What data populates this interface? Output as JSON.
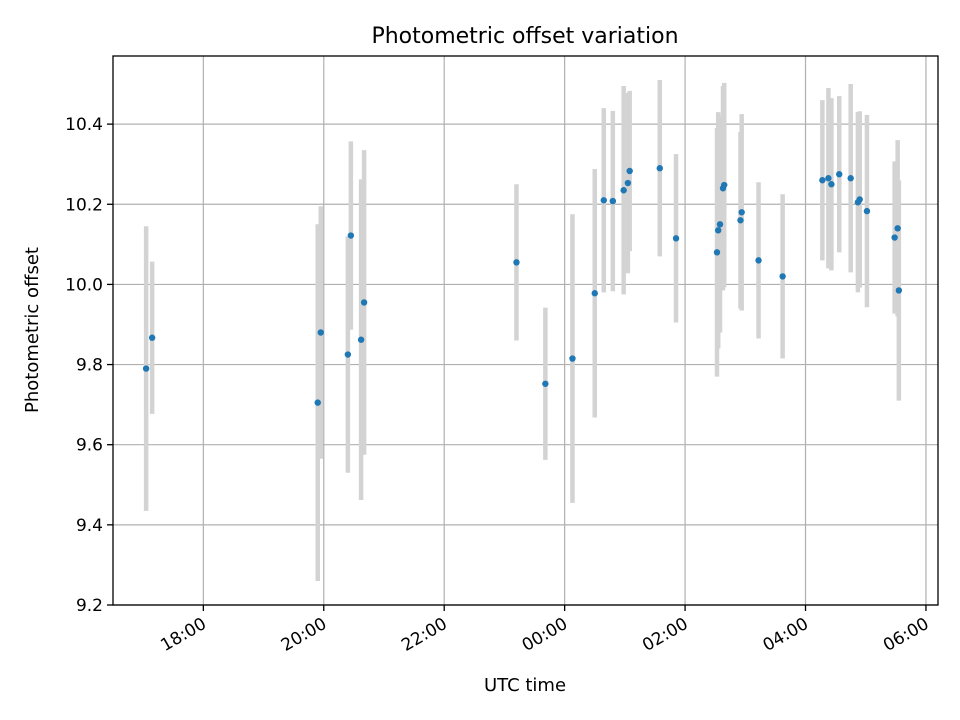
{
  "chart_data": {
    "type": "scatter",
    "title": "Photometric offset variation",
    "xlabel": "UTC time",
    "ylabel": "Photometric offset",
    "x_unit": "hours",
    "xlim": [
      16.5,
      30.2
    ],
    "ylim": [
      9.2,
      10.57
    ],
    "x_ticks": [
      {
        "value": 18,
        "label": "18:00"
      },
      {
        "value": 20,
        "label": "20:00"
      },
      {
        "value": 22,
        "label": "22:00"
      },
      {
        "value": 24,
        "label": "00:00"
      },
      {
        "value": 26,
        "label": "02:00"
      },
      {
        "value": 28,
        "label": "04:00"
      },
      {
        "value": 30,
        "label": "06:00"
      }
    ],
    "y_ticks": [
      {
        "value": 9.2,
        "label": "9.2"
      },
      {
        "value": 9.4,
        "label": "9.4"
      },
      {
        "value": 9.6,
        "label": "9.6"
      },
      {
        "value": 9.8,
        "label": "9.8"
      },
      {
        "value": 10.0,
        "label": "10.0"
      },
      {
        "value": 10.2,
        "label": "10.2"
      },
      {
        "value": 10.4,
        "label": "10.4"
      }
    ],
    "grid": true,
    "legend": "none",
    "marker_color": "#1f77b4",
    "errorbar_color": "#d3d3d3",
    "points": [
      {
        "x": 17.05,
        "y": 9.79,
        "yerr": 0.355
      },
      {
        "x": 17.15,
        "y": 9.867,
        "yerr": 0.19
      },
      {
        "x": 19.9,
        "y": 9.705,
        "yerr": 0.445
      },
      {
        "x": 19.95,
        "y": 9.88,
        "yerr": 0.315
      },
      {
        "x": 20.4,
        "y": 9.825,
        "yerr": 0.295
      },
      {
        "x": 20.45,
        "y": 10.122,
        "yerr": 0.235
      },
      {
        "x": 20.62,
        "y": 9.862,
        "yerr": 0.4
      },
      {
        "x": 20.67,
        "y": 9.955,
        "yerr": 0.38
      },
      {
        "x": 23.2,
        "y": 10.055,
        "yerr": 0.195
      },
      {
        "x": 23.68,
        "y": 9.752,
        "yerr": 0.19
      },
      {
        "x": 24.13,
        "y": 9.815,
        "yerr": 0.36
      },
      {
        "x": 24.5,
        "y": 9.978,
        "yerr": 0.31
      },
      {
        "x": 24.65,
        "y": 10.21,
        "yerr": 0.23
      },
      {
        "x": 24.8,
        "y": 10.208,
        "yerr": 0.225
      },
      {
        "x": 24.98,
        "y": 10.235,
        "yerr": 0.26
      },
      {
        "x": 25.05,
        "y": 10.253,
        "yerr": 0.225
      },
      {
        "x": 25.08,
        "y": 10.283,
        "yerr": 0.2
      },
      {
        "x": 25.58,
        "y": 10.29,
        "yerr": 0.22
      },
      {
        "x": 25.85,
        "y": 10.115,
        "yerr": 0.21
      },
      {
        "x": 26.53,
        "y": 10.08,
        "yerr": 0.31
      },
      {
        "x": 26.55,
        "y": 10.135,
        "yerr": 0.295
      },
      {
        "x": 26.58,
        "y": 10.15,
        "yerr": 0.27
      },
      {
        "x": 26.63,
        "y": 10.24,
        "yerr": 0.255
      },
      {
        "x": 26.65,
        "y": 10.248,
        "yerr": 0.255
      },
      {
        "x": 26.92,
        "y": 10.16,
        "yerr": 0.22
      },
      {
        "x": 26.94,
        "y": 10.18,
        "yerr": 0.245
      },
      {
        "x": 27.22,
        "y": 10.06,
        "yerr": 0.195
      },
      {
        "x": 27.62,
        "y": 10.02,
        "yerr": 0.205
      },
      {
        "x": 28.28,
        "y": 10.26,
        "yerr": 0.2
      },
      {
        "x": 28.38,
        "y": 10.265,
        "yerr": 0.225
      },
      {
        "x": 28.43,
        "y": 10.25,
        "yerr": 0.215
      },
      {
        "x": 28.56,
        "y": 10.275,
        "yerr": 0.195
      },
      {
        "x": 28.75,
        "y": 10.265,
        "yerr": 0.235
      },
      {
        "x": 28.87,
        "y": 10.205,
        "yerr": 0.225
      },
      {
        "x": 28.9,
        "y": 10.212,
        "yerr": 0.22
      },
      {
        "x": 29.02,
        "y": 10.183,
        "yerr": 0.24
      },
      {
        "x": 29.48,
        "y": 10.117,
        "yerr": 0.19
      },
      {
        "x": 29.53,
        "y": 10.14,
        "yerr": 0.22
      },
      {
        "x": 29.55,
        "y": 9.985,
        "yerr": 0.275
      }
    ]
  }
}
